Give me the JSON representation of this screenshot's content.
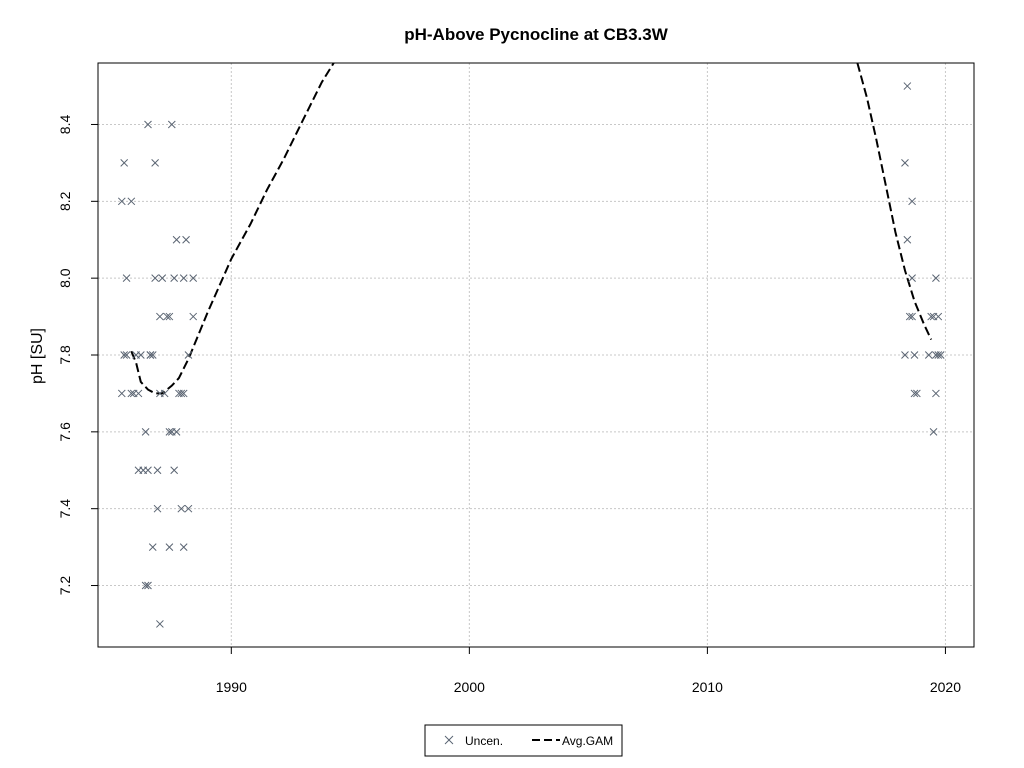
{
  "chart_data": {
    "type": "scatter",
    "title": "pH-Above Pycnocline at CB3.3W",
    "xlabel": "",
    "ylabel": "pH [SU]",
    "xlim": [
      1984.4,
      2021.2
    ],
    "ylim": [
      7.04,
      8.56
    ],
    "x_ticks": [
      1990,
      2000,
      2010,
      2020
    ],
    "y_ticks": [
      7.2,
      7.4,
      7.6,
      7.8,
      8.0,
      8.2,
      8.4
    ],
    "grid": true,
    "legend": {
      "position": "bottom-center",
      "entries": [
        "Uncen.",
        "Avg.GAM"
      ]
    },
    "colors": {
      "points": "#5a6472",
      "gam": "#000000",
      "grid": "#c8c8c8"
    },
    "series": [
      {
        "name": "Uncen.",
        "style": "x-marker",
        "points": [
          [
            1985.4,
            8.2
          ],
          [
            1985.4,
            7.7
          ],
          [
            1985.5,
            8.3
          ],
          [
            1985.5,
            7.8
          ],
          [
            1985.6,
            8.0
          ],
          [
            1985.6,
            7.8
          ],
          [
            1985.8,
            7.7
          ],
          [
            1985.8,
            8.2
          ],
          [
            1985.9,
            7.7
          ],
          [
            1986.0,
            7.8
          ],
          [
            1986.1,
            7.7
          ],
          [
            1986.1,
            7.5
          ],
          [
            1986.2,
            7.8
          ],
          [
            1986.3,
            7.5
          ],
          [
            1986.4,
            7.2
          ],
          [
            1986.4,
            7.6
          ],
          [
            1986.5,
            7.5
          ],
          [
            1986.5,
            8.4
          ],
          [
            1986.5,
            7.2
          ],
          [
            1986.6,
            7.8
          ],
          [
            1986.6,
            7.8
          ],
          [
            1986.7,
            7.3
          ],
          [
            1986.7,
            7.8
          ],
          [
            1986.8,
            8.0
          ],
          [
            1986.8,
            8.3
          ],
          [
            1986.9,
            7.5
          ],
          [
            1986.9,
            7.4
          ],
          [
            1987.0,
            7.9
          ],
          [
            1987.0,
            7.7
          ],
          [
            1987.0,
            7.1
          ],
          [
            1987.1,
            8.0
          ],
          [
            1987.2,
            7.7
          ],
          [
            1987.3,
            7.9
          ],
          [
            1987.4,
            7.9
          ],
          [
            1987.4,
            7.3
          ],
          [
            1987.4,
            7.6
          ],
          [
            1987.5,
            8.4
          ],
          [
            1987.5,
            7.6
          ],
          [
            1987.6,
            8.0
          ],
          [
            1987.6,
            7.5
          ],
          [
            1987.7,
            7.6
          ],
          [
            1987.7,
            8.1
          ],
          [
            1987.8,
            7.7
          ],
          [
            1987.9,
            7.7
          ],
          [
            1987.9,
            7.4
          ],
          [
            1988.0,
            7.3
          ],
          [
            1988.0,
            8.0
          ],
          [
            1988.0,
            7.7
          ],
          [
            1988.1,
            8.1
          ],
          [
            1988.2,
            7.8
          ],
          [
            1988.2,
            7.4
          ],
          [
            1988.4,
            8.0
          ],
          [
            1988.4,
            7.9
          ],
          [
            2018.3,
            8.3
          ],
          [
            2018.3,
            7.8
          ],
          [
            2018.4,
            8.5
          ],
          [
            2018.4,
            8.1
          ],
          [
            2018.5,
            7.9
          ],
          [
            2018.6,
            8.2
          ],
          [
            2018.6,
            8.0
          ],
          [
            2018.6,
            7.9
          ],
          [
            2018.7,
            7.7
          ],
          [
            2018.7,
            7.8
          ],
          [
            2018.8,
            7.7
          ],
          [
            2019.3,
            7.8
          ],
          [
            2019.4,
            7.9
          ],
          [
            2019.5,
            7.6
          ],
          [
            2019.5,
            7.9
          ],
          [
            2019.6,
            7.7
          ],
          [
            2019.6,
            8.0
          ],
          [
            2019.6,
            7.8
          ],
          [
            2019.7,
            7.9
          ],
          [
            2019.7,
            7.8
          ],
          [
            2019.8,
            7.8
          ]
        ]
      },
      {
        "name": "Avg.GAM",
        "style": "dashed-line",
        "segments": [
          [
            [
              1985.8,
              7.81
            ],
            [
              1986.0,
              7.78
            ],
            [
              1986.2,
              7.73
            ],
            [
              1986.5,
              7.71
            ],
            [
              1986.8,
              7.7
            ],
            [
              1987.1,
              7.7
            ],
            [
              1987.5,
              7.72
            ],
            [
              1987.8,
              7.74
            ],
            [
              1988.2,
              7.79
            ],
            [
              1988.6,
              7.85
            ],
            [
              1989.0,
              7.91
            ],
            [
              1989.5,
              7.98
            ],
            [
              1990.0,
              8.05
            ],
            [
              1990.8,
              8.14
            ],
            [
              1991.5,
              8.23
            ],
            [
              1992.2,
              8.31
            ],
            [
              1993.0,
              8.41
            ],
            [
              1993.8,
              8.51
            ],
            [
              1994.3,
              8.56
            ]
          ],
          [
            [
              2016.3,
              8.56
            ],
            [
              2016.7,
              8.47
            ],
            [
              2017.1,
              8.36
            ],
            [
              2017.5,
              8.24
            ],
            [
              2017.9,
              8.12
            ],
            [
              2018.3,
              8.02
            ],
            [
              2018.7,
              7.94
            ],
            [
              2019.1,
              7.88
            ],
            [
              2019.4,
              7.84
            ]
          ]
        ]
      }
    ]
  }
}
